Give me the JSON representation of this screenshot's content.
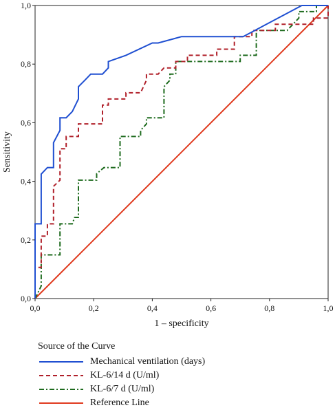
{
  "chart_data": {
    "type": "line",
    "title": "",
    "xlabel": "1 – specificity",
    "ylabel": "Sensitivity",
    "xlim": [
      0,
      1
    ],
    "ylim": [
      0,
      1
    ],
    "x_ticks": [
      "0,0",
      "0,2",
      "0,4",
      "0,6",
      "0,8",
      "1,0"
    ],
    "y_ticks": [
      "0,0",
      "0,2",
      "0,4",
      "0,6",
      "0,8",
      "1,0"
    ],
    "grid": false,
    "legend": {
      "title": "Source of the Curve",
      "placement": "bottom-left"
    },
    "series": [
      {
        "name": "Mechanical ventilation (days)",
        "color": "#1f4fd1",
        "dash": "solid",
        "points": [
          [
            0,
            0
          ],
          [
            0,
            0.255
          ],
          [
            0.021,
            0.255
          ],
          [
            0.021,
            0.425
          ],
          [
            0.042,
            0.447
          ],
          [
            0.063,
            0.447
          ],
          [
            0.063,
            0.532
          ],
          [
            0.085,
            0.574
          ],
          [
            0.085,
            0.617
          ],
          [
            0.106,
            0.617
          ],
          [
            0.127,
            0.638
          ],
          [
            0.148,
            0.681
          ],
          [
            0.148,
            0.723
          ],
          [
            0.17,
            0.745
          ],
          [
            0.19,
            0.766
          ],
          [
            0.21,
            0.766
          ],
          [
            0.23,
            0.766
          ],
          [
            0.25,
            0.787
          ],
          [
            0.25,
            0.809
          ],
          [
            0.31,
            0.83
          ],
          [
            0.4,
            0.872
          ],
          [
            0.42,
            0.872
          ],
          [
            0.5,
            0.894
          ],
          [
            0.71,
            0.894
          ],
          [
            0.75,
            0.915
          ],
          [
            0.91,
            1.0
          ],
          [
            1.0,
            1.0
          ]
        ]
      },
      {
        "name": "KL-6/14 d (U/ml)",
        "color": "#b0202a",
        "dash": "dashed",
        "points": [
          [
            0,
            0
          ],
          [
            0,
            0.106
          ],
          [
            0.021,
            0.106
          ],
          [
            0.021,
            0.213
          ],
          [
            0.042,
            0.213
          ],
          [
            0.042,
            0.255
          ],
          [
            0.063,
            0.255
          ],
          [
            0.063,
            0.383
          ],
          [
            0.085,
            0.404
          ],
          [
            0.085,
            0.511
          ],
          [
            0.106,
            0.511
          ],
          [
            0.106,
            0.553
          ],
          [
            0.148,
            0.553
          ],
          [
            0.148,
            0.596
          ],
          [
            0.23,
            0.596
          ],
          [
            0.23,
            0.66
          ],
          [
            0.25,
            0.66
          ],
          [
            0.25,
            0.681
          ],
          [
            0.31,
            0.681
          ],
          [
            0.31,
            0.702
          ],
          [
            0.36,
            0.702
          ],
          [
            0.38,
            0.745
          ],
          [
            0.38,
            0.766
          ],
          [
            0.42,
            0.766
          ],
          [
            0.44,
            0.787
          ],
          [
            0.48,
            0.787
          ],
          [
            0.48,
            0.809
          ],
          [
            0.52,
            0.809
          ],
          [
            0.52,
            0.83
          ],
          [
            0.62,
            0.83
          ],
          [
            0.62,
            0.851
          ],
          [
            0.68,
            0.851
          ],
          [
            0.68,
            0.894
          ],
          [
            0.74,
            0.894
          ],
          [
            0.74,
            0.915
          ],
          [
            0.82,
            0.915
          ],
          [
            0.82,
            0.936
          ],
          [
            0.95,
            0.936
          ],
          [
            0.95,
            0.957
          ],
          [
            1.0,
            0.957
          ],
          [
            1.0,
            1.0
          ]
        ]
      },
      {
        "name": "KL-6/7 d (U/ml)",
        "color": "#1e6b1e",
        "dash": "dashdot",
        "points": [
          [
            0,
            0
          ],
          [
            0.021,
            0.043
          ],
          [
            0.021,
            0.149
          ],
          [
            0.085,
            0.149
          ],
          [
            0.085,
            0.255
          ],
          [
            0.127,
            0.255
          ],
          [
            0.135,
            0.277
          ],
          [
            0.148,
            0.277
          ],
          [
            0.148,
            0.404
          ],
          [
            0.21,
            0.404
          ],
          [
            0.21,
            0.426
          ],
          [
            0.235,
            0.447
          ],
          [
            0.29,
            0.447
          ],
          [
            0.29,
            0.553
          ],
          [
            0.36,
            0.553
          ],
          [
            0.36,
            0.574
          ],
          [
            0.38,
            0.596
          ],
          [
            0.38,
            0.617
          ],
          [
            0.44,
            0.617
          ],
          [
            0.44,
            0.723
          ],
          [
            0.46,
            0.745
          ],
          [
            0.46,
            0.766
          ],
          [
            0.48,
            0.766
          ],
          [
            0.48,
            0.809
          ],
          [
            0.7,
            0.809
          ],
          [
            0.7,
            0.83
          ],
          [
            0.755,
            0.83
          ],
          [
            0.755,
            0.915
          ],
          [
            0.86,
            0.915
          ],
          [
            0.9,
            0.957
          ],
          [
            0.9,
            0.979
          ],
          [
            0.96,
            0.979
          ],
          [
            0.96,
            1.0
          ],
          [
            1.0,
            1.0
          ]
        ]
      },
      {
        "name": "Reference Line",
        "color": "#e03a1e",
        "dash": "solid",
        "points": [
          [
            0,
            0
          ],
          [
            1,
            1
          ]
        ]
      }
    ]
  }
}
